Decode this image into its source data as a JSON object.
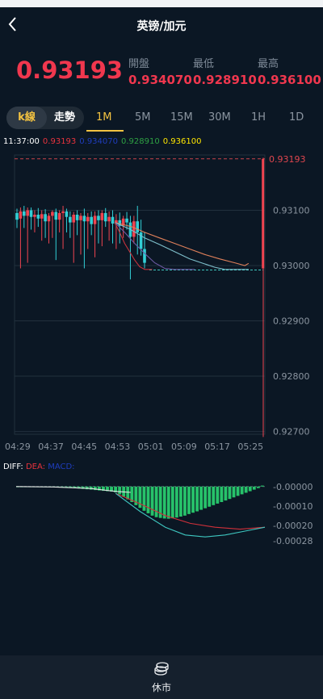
{
  "header": {
    "title": "英镑/加元",
    "back_icon": "chevron-left-icon"
  },
  "quote": {
    "price": "0.93193",
    "open_label": "開盤",
    "open": "0.934070",
    "low_label": "最低",
    "low": "0.928910",
    "high_label": "最高",
    "high": "0.936100"
  },
  "tabs": {
    "mode_k": "k線",
    "mode_trend": "走勢",
    "periods": [
      "1M",
      "5M",
      "15M",
      "30M",
      "1H",
      "1D"
    ],
    "active_period": "1M"
  },
  "legend": {
    "time": "11:37:00",
    "v1": "0.93193",
    "v2": "0.934070",
    "v3": "0.928910",
    "v4": "0.936100",
    "c1": "#e8333d",
    "c2": "#1f3dbd",
    "c3": "#2ea043",
    "c4": "#ffe600"
  },
  "macd_legend": {
    "diff": "DIFF:",
    "dea": "DEA:",
    "macd": "MACD:"
  },
  "colors": {
    "up": "#ef4450",
    "down": "#32cfd6",
    "accent": "#f3c341",
    "bg": "#0b1724"
  },
  "chart_data": [
    {
      "type": "candlestick",
      "title": "",
      "x_ticks": [
        "04:29",
        "04:37",
        "04:45",
        "04:53",
        "05:01",
        "05:09",
        "05:17",
        "05:25"
      ],
      "y_ticks": [
        0.931,
        0.93,
        0.929,
        0.928,
        0.927
      ],
      "y_tick_labels": [
        "0.93100",
        "0.93000",
        "0.92900",
        "0.92800",
        "0.92700"
      ],
      "ylim": [
        0.92695,
        0.932
      ],
      "current_price": 0.93193,
      "current_label": "0.93193",
      "dashed_level": 0.92992,
      "grid": true,
      "candles": [
        {
          "o": 0.93095,
          "h": 0.93103,
          "l": 0.93068,
          "c": 0.93083
        },
        {
          "o": 0.93085,
          "h": 0.93105,
          "l": 0.92995,
          "c": 0.93098
        },
        {
          "o": 0.93098,
          "h": 0.93108,
          "l": 0.93068,
          "c": 0.9309
        },
        {
          "o": 0.9309,
          "h": 0.93105,
          "l": 0.93005,
          "c": 0.931
        },
        {
          "o": 0.931,
          "h": 0.93105,
          "l": 0.93065,
          "c": 0.93088
        },
        {
          "o": 0.93088,
          "h": 0.931,
          "l": 0.9306,
          "c": 0.93092
        },
        {
          "o": 0.93092,
          "h": 0.93104,
          "l": 0.9307,
          "c": 0.93085
        },
        {
          "o": 0.93085,
          "h": 0.931,
          "l": 0.93045,
          "c": 0.93093
        },
        {
          "o": 0.93093,
          "h": 0.93102,
          "l": 0.9305,
          "c": 0.9308
        },
        {
          "o": 0.9308,
          "h": 0.93095,
          "l": 0.9304,
          "c": 0.9309
        },
        {
          "o": 0.9309,
          "h": 0.931,
          "l": 0.9305,
          "c": 0.93097
        },
        {
          "o": 0.93097,
          "h": 0.93103,
          "l": 0.9301,
          "c": 0.93083
        },
        {
          "o": 0.93083,
          "h": 0.931,
          "l": 0.9306,
          "c": 0.93095
        },
        {
          "o": 0.93095,
          "h": 0.93108,
          "l": 0.9303,
          "c": 0.93098
        },
        {
          "o": 0.93098,
          "h": 0.93103,
          "l": 0.9306,
          "c": 0.93088
        },
        {
          "o": 0.93088,
          "h": 0.93098,
          "l": 0.9305,
          "c": 0.93078
        },
        {
          "o": 0.93078,
          "h": 0.93097,
          "l": 0.93005,
          "c": 0.93092
        },
        {
          "o": 0.93092,
          "h": 0.931,
          "l": 0.93055,
          "c": 0.93082
        },
        {
          "o": 0.93082,
          "h": 0.93095,
          "l": 0.9302,
          "c": 0.9309
        },
        {
          "o": 0.9309,
          "h": 0.93103,
          "l": 0.92995,
          "c": 0.9308
        },
        {
          "o": 0.9308,
          "h": 0.93095,
          "l": 0.9303,
          "c": 0.93088
        },
        {
          "o": 0.93088,
          "h": 0.93098,
          "l": 0.93055,
          "c": 0.93075
        },
        {
          "o": 0.93075,
          "h": 0.93098,
          "l": 0.93015,
          "c": 0.9309
        },
        {
          "o": 0.9309,
          "h": 0.931,
          "l": 0.9304,
          "c": 0.93082
        },
        {
          "o": 0.93082,
          "h": 0.931,
          "l": 0.93035,
          "c": 0.93095
        },
        {
          "o": 0.93095,
          "h": 0.93104,
          "l": 0.9307,
          "c": 0.9308
        },
        {
          "o": 0.9308,
          "h": 0.93098,
          "l": 0.93045,
          "c": 0.93088
        },
        {
          "o": 0.93088,
          "h": 0.931,
          "l": 0.9304,
          "c": 0.93076
        },
        {
          "o": 0.93076,
          "h": 0.93093,
          "l": 0.9303,
          "c": 0.93082
        },
        {
          "o": 0.93082,
          "h": 0.93096,
          "l": 0.9304,
          "c": 0.93072
        },
        {
          "o": 0.93072,
          "h": 0.9309,
          "l": 0.9305,
          "c": 0.93085
        },
        {
          "o": 0.93085,
          "h": 0.93097,
          "l": 0.93065,
          "c": 0.93078
        },
        {
          "o": 0.93078,
          "h": 0.9309,
          "l": 0.92975,
          "c": 0.93052
        },
        {
          "o": 0.93052,
          "h": 0.9309,
          "l": 0.9304,
          "c": 0.9308
        },
        {
          "o": 0.9308,
          "h": 0.93108,
          "l": 0.9302,
          "c": 0.9306
        },
        {
          "o": 0.9306,
          "h": 0.93083,
          "l": 0.93018,
          "c": 0.9303
        },
        {
          "o": 0.9303,
          "h": 0.9306,
          "l": 0.92995,
          "c": 0.93005
        },
        {
          "o": 0.92995,
          "h": 0.93195,
          "l": 0.9269,
          "c": 0.93193
        }
      ],
      "ma_lines": [
        {
          "color": "#e0805a",
          "x_frac": [
            0.4,
            0.47,
            0.52,
            0.58,
            0.64,
            0.7,
            0.76,
            0.82,
            0.88,
            0.92,
            0.935
          ],
          "y": [
            0.93078,
            0.9307,
            0.9306,
            0.9305,
            0.9304,
            0.9303,
            0.9302,
            0.93012,
            0.93005,
            0.93,
            0.93004
          ]
        },
        {
          "color": "#7fc0cc",
          "x_frac": [
            0.4,
            0.46,
            0.52,
            0.58,
            0.64,
            0.7,
            0.76,
            0.8,
            0.84,
            0.92,
            0.935
          ],
          "y": [
            0.93078,
            0.93066,
            0.9305,
            0.93038,
            0.93025,
            0.93012,
            0.93003,
            0.92997,
            0.92993,
            0.92993,
            0.92993
          ]
        },
        {
          "color": "#6d5aa5",
          "x_frac": [
            0.4,
            0.44,
            0.48,
            0.52,
            0.56,
            0.6,
            0.64,
            0.68,
            0.72
          ],
          "y": [
            0.93078,
            0.9306,
            0.9304,
            0.93022,
            0.93005,
            0.92995,
            0.92993,
            0.92993,
            0.92993
          ]
        },
        {
          "color": "#c6333c",
          "x_frac": [
            0.4,
            0.42,
            0.44,
            0.46,
            0.48,
            0.5,
            0.52,
            0.55
          ],
          "y": [
            0.93078,
            0.9306,
            0.9304,
            0.93025,
            0.9301,
            0.92998,
            0.92993,
            0.92993
          ]
        }
      ]
    },
    {
      "type": "bar",
      "title": "MACD",
      "y_tick_labels": [
        "-0.00000",
        "-0.00010",
        "-0.00020",
        "-0.00028"
      ],
      "y_ticks": [
        0,
        -0.0001,
        -0.0002,
        -0.00028
      ],
      "ylim": [
        -0.00033,
        2e-05
      ],
      "histogram": [
        0,
        0,
        0,
        0,
        0,
        0,
        0,
        0,
        0,
        0,
        0,
        -2e-06,
        -4e-06,
        -6e-06,
        -8e-06,
        -1e-05,
        -1.2e-05,
        -1.4e-05,
        -1.6e-05,
        -1.8e-05,
        -2e-05,
        -2.2e-05,
        -2.4e-05,
        -2.6e-05,
        -3e-05,
        -4e-05,
        -5.2e-05,
        -6.6e-05,
        -8e-05,
        -9.6e-05,
        -0.00011,
        -0.000125,
        -0.000138,
        -0.00015,
        -0.000158,
        -0.000162,
        -0.000165,
        -0.000166,
        -0.000164,
        -0.00016,
        -0.000155,
        -0.00015,
        -0.000142,
        -0.000135,
        -0.000128,
        -0.00012,
        -0.000112,
        -0.000104,
        -9.6e-05,
        -8.8e-05,
        -8e-05,
        -7.2e-05,
        -6.4e-05,
        -5.6e-05,
        -4.8e-05,
        -4e-05,
        -3.2e-05,
        -2.4e-05,
        -1.6e-05,
        -8e-06,
        5e-06
      ],
      "diff": {
        "color": "#e6e6e6",
        "x_frac": [
          0.0,
          0.15,
          0.3,
          0.4,
          0.46
        ],
        "y": [
          0,
          -2e-06,
          -1e-05,
          -2.5e-05,
          -3e-05
        ]
      },
      "dea": {
        "color": "#d0303a",
        "x_frac": [
          0.4,
          0.5,
          0.6,
          0.7,
          0.8,
          0.9,
          1.0
        ],
        "y": [
          -3.5e-05,
          -9e-05,
          -0.00015,
          -0.00019,
          -0.00021,
          -0.00022,
          -0.00021
        ]
      },
      "macd_line": {
        "color": "#3ec7c0",
        "x_frac": [
          0.4,
          0.5,
          0.6,
          0.68,
          0.76,
          0.84,
          0.92,
          1.0
        ],
        "y": [
          -3.5e-05,
          -0.00013,
          -0.00021,
          -0.00025,
          -0.00026,
          -0.00025,
          -0.00023,
          -0.00021
        ]
      }
    }
  ],
  "footer": {
    "label": "休市",
    "icon": "coins-icon"
  }
}
